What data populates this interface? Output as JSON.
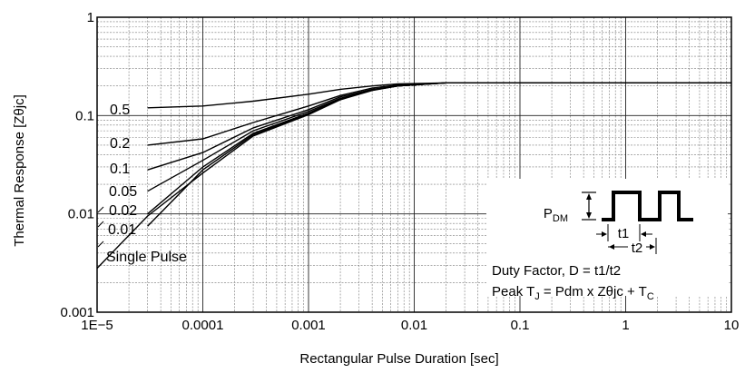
{
  "chart_data": {
    "type": "line",
    "xscale": "log",
    "yscale": "log",
    "xlim": [
      1e-05,
      10
    ],
    "ylim": [
      0.001,
      1
    ],
    "grid": true,
    "xlabel": "Rectangular Pulse Duration [sec]",
    "ylabel": "Thermal Response [Zθjc]",
    "x_tick_labels": [
      "1E−5",
      "0.0001",
      "0.001",
      "0.01",
      "0.1",
      "1",
      "10"
    ],
    "y_tick_labels": [
      "0.001",
      "0.01",
      "0.1",
      "1"
    ],
    "series": [
      {
        "name": "0.5",
        "x": [
          3e-05,
          0.0001,
          0.0003,
          0.001,
          0.002,
          0.004,
          0.007,
          0.02,
          0.1,
          1,
          10
        ],
        "y": [
          0.12,
          0.125,
          0.14,
          0.165,
          0.185,
          0.2,
          0.21,
          0.215,
          0.215,
          0.215,
          0.215
        ]
      },
      {
        "name": "0.2",
        "x": [
          3e-05,
          0.0001,
          0.0003,
          0.001,
          0.002,
          0.004,
          0.007,
          0.02,
          0.1,
          1,
          10
        ],
        "y": [
          0.05,
          0.058,
          0.085,
          0.125,
          0.16,
          0.19,
          0.205,
          0.215,
          0.215,
          0.215,
          0.215
        ]
      },
      {
        "name": "0.1",
        "x": [
          3e-05,
          0.0001,
          0.0003,
          0.001,
          0.002,
          0.004,
          0.007,
          0.02,
          0.1,
          1,
          10
        ],
        "y": [
          0.028,
          0.042,
          0.075,
          0.115,
          0.155,
          0.185,
          0.2,
          0.215,
          0.215,
          0.215,
          0.215
        ]
      },
      {
        "name": "0.05",
        "x": [
          3e-05,
          0.0001,
          0.0003,
          0.001,
          0.002,
          0.004,
          0.007,
          0.02,
          0.1,
          1,
          10
        ],
        "y": [
          0.017,
          0.035,
          0.07,
          0.11,
          0.15,
          0.183,
          0.2,
          0.215,
          0.215,
          0.215,
          0.215
        ]
      },
      {
        "name": "0.02",
        "x": [
          3e-05,
          0.0001,
          0.0003,
          0.001,
          0.002,
          0.004,
          0.007,
          0.02,
          0.1,
          1,
          10
        ],
        "y": [
          0.01,
          0.03,
          0.066,
          0.106,
          0.148,
          0.182,
          0.2,
          0.215,
          0.215,
          0.215,
          0.215
        ]
      },
      {
        "name": "0.01",
        "x": [
          3e-05,
          0.0001,
          0.0003,
          0.001,
          0.002,
          0.004,
          0.007,
          0.02,
          0.1,
          1,
          10
        ],
        "y": [
          0.0075,
          0.028,
          0.064,
          0.104,
          0.146,
          0.181,
          0.2,
          0.215,
          0.215,
          0.215,
          0.215
        ]
      },
      {
        "name": "Single Pulse",
        "x": [
          1e-05,
          3e-05,
          0.0001,
          0.0003,
          0.001,
          0.002,
          0.004,
          0.007,
          0.02,
          0.1,
          1,
          10
        ],
        "y": [
          0.0028,
          0.0095,
          0.026,
          0.062,
          0.102,
          0.145,
          0.18,
          0.2,
          0.215,
          0.215,
          0.215,
          0.215
        ]
      }
    ],
    "series_labels": [
      "0.5",
      "0.2",
      "0.1",
      "0.05",
      "0.02",
      "0.01",
      "Single Pulse"
    ],
    "annotations": {
      "pdm": {
        "main": "P",
        "sub": "DM"
      },
      "t1": "t1",
      "t2": "t2",
      "duty_factor": "Duty Factor, D = t1/t2",
      "peak_main": "Peak T",
      "peak_sub_j": "J",
      "peak_mid": " = Pdm x Zθjc + T",
      "peak_sub_c": "C"
    }
  }
}
